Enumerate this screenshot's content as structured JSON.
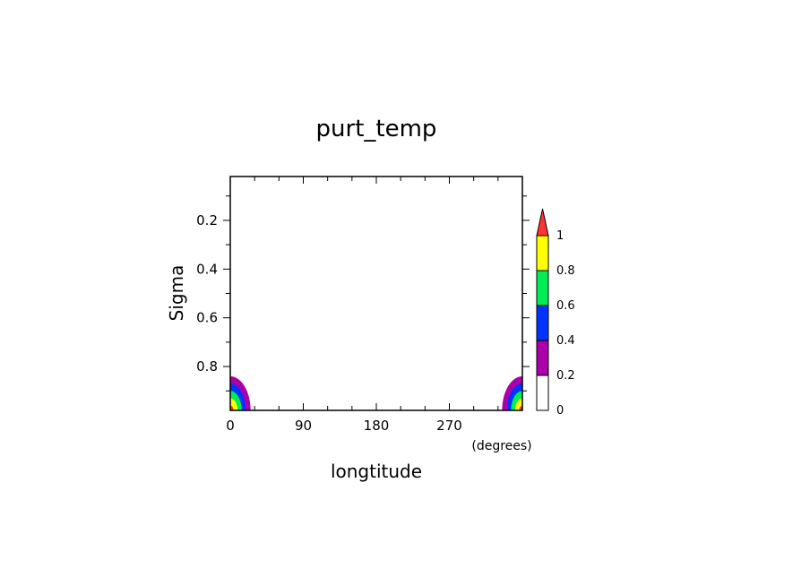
{
  "chart_data": {
    "type": "contour",
    "title": "purt_temp",
    "xlabel": "longtitude",
    "xunit": "(degrees)",
    "ylabel": "Sigma",
    "xlim": [
      0,
      360
    ],
    "ylim": [
      0.98,
      0.02
    ],
    "xticks": [
      0,
      90,
      180,
      270
    ],
    "xtick_labels": [
      "0",
      "90",
      "180",
      "270"
    ],
    "yticks": [
      0.2,
      0.4,
      0.6,
      0.8
    ],
    "ytick_labels": [
      "0.2",
      "0.4",
      "0.6",
      "0.8"
    ],
    "grid": false,
    "levels": [
      0,
      0.2,
      0.4,
      0.6,
      0.8,
      1
    ],
    "level_labels": [
      "0",
      "0.2",
      "0.4",
      "0.6",
      "0.8",
      "1"
    ],
    "colors": [
      "#ffffff",
      "#aa00aa",
      "#0033ff",
      "#00ee55",
      "#ffff00",
      "#ff3333"
    ],
    "field": {
      "description_center_longitudes": [
        0,
        360
      ],
      "center_sigma": 0.98,
      "contours": [
        {
          "level": 0.2,
          "lon_halfwidth": 25,
          "sigma_top": 0.84
        },
        {
          "level": 0.4,
          "lon_halfwidth": 19,
          "sigma_top": 0.87
        },
        {
          "level": 0.6,
          "lon_halfwidth": 14,
          "sigma_top": 0.9
        },
        {
          "level": 0.8,
          "lon_halfwidth": 9,
          "sigma_top": 0.93
        },
        {
          "level": 1.0,
          "lon_halfwidth": 4,
          "sigma_top": 0.96
        }
      ]
    }
  }
}
